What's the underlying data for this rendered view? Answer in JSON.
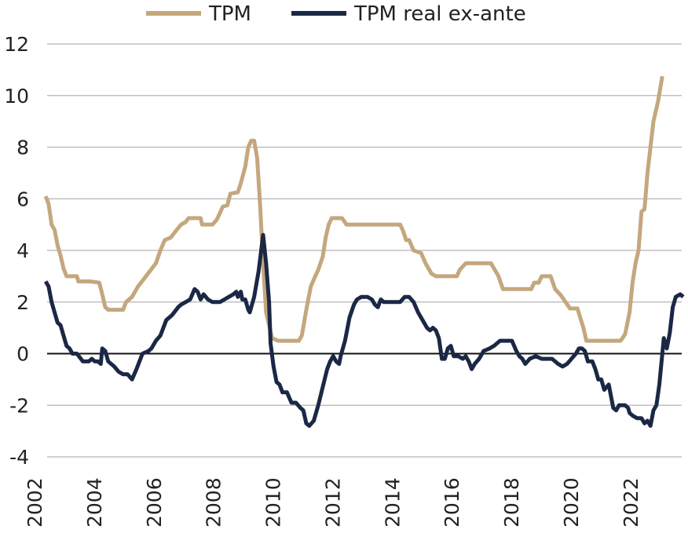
{
  "chart_data": {
    "type": "line",
    "title": "",
    "xlabel": "",
    "ylabel": "",
    "xlim": [
      2002.0,
      2022.75
    ],
    "ylim": [
      -4,
      12
    ],
    "y_ticks": [
      12,
      10,
      8,
      6,
      4,
      2,
      0,
      -2,
      -4
    ],
    "x_ticks": [
      2002,
      2004,
      2006,
      2008,
      2010,
      2012,
      2014,
      2016,
      2018,
      2020,
      2022
    ],
    "grid": "horizontal",
    "zero_line": true,
    "legend_position": "top-center",
    "series": [
      {
        "name": "TPM",
        "color": "#C4A77D",
        "points": [
          [
            2002.0,
            6.1
          ],
          [
            2002.1,
            5.8
          ],
          [
            2002.2,
            5.0
          ],
          [
            2002.3,
            4.8
          ],
          [
            2002.4,
            4.2
          ],
          [
            2002.5,
            3.8
          ],
          [
            2002.6,
            3.3
          ],
          [
            2002.7,
            3.0
          ],
          [
            2002.9,
            3.0
          ],
          [
            2003.05,
            3.0
          ],
          [
            2003.1,
            2.8
          ],
          [
            2003.5,
            2.8
          ],
          [
            2003.8,
            2.75
          ],
          [
            2003.9,
            2.3
          ],
          [
            2004.0,
            1.8
          ],
          [
            2004.1,
            1.7
          ],
          [
            2004.6,
            1.7
          ],
          [
            2004.7,
            2.0
          ],
          [
            2004.9,
            2.2
          ],
          [
            2005.1,
            2.6
          ],
          [
            2005.3,
            2.9
          ],
          [
            2005.5,
            3.2
          ],
          [
            2005.7,
            3.5
          ],
          [
            2005.85,
            4.0
          ],
          [
            2006.0,
            4.4
          ],
          [
            2006.2,
            4.5
          ],
          [
            2006.4,
            4.8
          ],
          [
            2006.55,
            5.0
          ],
          [
            2006.7,
            5.1
          ],
          [
            2006.8,
            5.25
          ],
          [
            2007.2,
            5.25
          ],
          [
            2007.25,
            5.0
          ],
          [
            2007.6,
            5.0
          ],
          [
            2007.75,
            5.2
          ],
          [
            2007.95,
            5.7
          ],
          [
            2008.1,
            5.75
          ],
          [
            2008.2,
            6.2
          ],
          [
            2008.45,
            6.25
          ],
          [
            2008.55,
            6.6
          ],
          [
            2008.7,
            7.25
          ],
          [
            2008.8,
            8.0
          ],
          [
            2008.9,
            8.25
          ],
          [
            2009.0,
            8.25
          ],
          [
            2009.1,
            7.6
          ],
          [
            2009.2,
            5.75
          ],
          [
            2009.3,
            3.5
          ],
          [
            2009.4,
            1.6
          ],
          [
            2009.5,
            1.1
          ],
          [
            2009.6,
            0.6
          ],
          [
            2009.8,
            0.5
          ],
          [
            2010.5,
            0.5
          ],
          [
            2010.6,
            0.7
          ],
          [
            2010.75,
            1.7
          ],
          [
            2010.9,
            2.6
          ],
          [
            2011.05,
            3.0
          ],
          [
            2011.15,
            3.25
          ],
          [
            2011.3,
            3.75
          ],
          [
            2011.4,
            4.5
          ],
          [
            2011.5,
            5.0
          ],
          [
            2011.6,
            5.25
          ],
          [
            2011.95,
            5.25
          ],
          [
            2012.1,
            5.0
          ],
          [
            2013.9,
            5.0
          ],
          [
            2014.0,
            4.75
          ],
          [
            2014.1,
            4.4
          ],
          [
            2014.2,
            4.4
          ],
          [
            2014.35,
            4.0
          ],
          [
            2014.6,
            3.9
          ],
          [
            2014.75,
            3.5
          ],
          [
            2014.95,
            3.1
          ],
          [
            2015.1,
            3.0
          ],
          [
            2015.8,
            3.0
          ],
          [
            2015.9,
            3.25
          ],
          [
            2016.1,
            3.5
          ],
          [
            2016.95,
            3.5
          ],
          [
            2017.1,
            3.2
          ],
          [
            2017.2,
            3.0
          ],
          [
            2017.35,
            2.5
          ],
          [
            2017.5,
            2.5
          ],
          [
            2018.3,
            2.5
          ],
          [
            2018.4,
            2.75
          ],
          [
            2018.55,
            2.75
          ],
          [
            2018.65,
            3.0
          ],
          [
            2018.95,
            3.0
          ],
          [
            2019.1,
            2.5
          ],
          [
            2019.3,
            2.25
          ],
          [
            2019.45,
            2.0
          ],
          [
            2019.6,
            1.75
          ],
          [
            2019.85,
            1.75
          ],
          [
            2020.05,
            1.0
          ],
          [
            2020.15,
            0.5
          ],
          [
            2021.3,
            0.5
          ],
          [
            2021.45,
            0.75
          ],
          [
            2021.6,
            1.6
          ],
          [
            2021.7,
            2.75
          ],
          [
            2021.8,
            3.5
          ],
          [
            2021.9,
            4.0
          ],
          [
            2022.0,
            5.5
          ],
          [
            2022.1,
            5.6
          ],
          [
            2022.2,
            7.0
          ],
          [
            2022.3,
            8.0
          ],
          [
            2022.4,
            9.0
          ],
          [
            2022.55,
            9.75
          ],
          [
            2022.7,
            10.75
          ]
        ]
      },
      {
        "name": "TPM real ex-ante",
        "color": "#1B2845",
        "points": [
          [
            2002.0,
            2.8
          ],
          [
            2002.1,
            2.6
          ],
          [
            2002.2,
            2.0
          ],
          [
            2002.3,
            1.6
          ],
          [
            2002.4,
            1.2
          ],
          [
            2002.5,
            1.1
          ],
          [
            2002.6,
            0.7
          ],
          [
            2002.7,
            0.3
          ],
          [
            2002.8,
            0.2
          ],
          [
            2002.9,
            0.0
          ],
          [
            2003.05,
            0.0
          ],
          [
            2003.25,
            -0.3
          ],
          [
            2003.45,
            -0.3
          ],
          [
            2003.55,
            -0.2
          ],
          [
            2003.65,
            -0.3
          ],
          [
            2003.75,
            -0.3
          ],
          [
            2003.85,
            -0.4
          ],
          [
            2003.9,
            0.2
          ],
          [
            2004.0,
            0.1
          ],
          [
            2004.1,
            -0.3
          ],
          [
            2004.3,
            -0.5
          ],
          [
            2004.45,
            -0.7
          ],
          [
            2004.6,
            -0.8
          ],
          [
            2004.75,
            -0.8
          ],
          [
            2004.9,
            -1.0
          ],
          [
            2005.05,
            -0.6
          ],
          [
            2005.25,
            0.0
          ],
          [
            2005.45,
            0.1
          ],
          [
            2005.55,
            0.2
          ],
          [
            2005.7,
            0.5
          ],
          [
            2005.85,
            0.7
          ],
          [
            2006.05,
            1.3
          ],
          [
            2006.25,
            1.5
          ],
          [
            2006.45,
            1.8
          ],
          [
            2006.55,
            1.9
          ],
          [
            2006.7,
            2.0
          ],
          [
            2006.85,
            2.1
          ],
          [
            2007.0,
            2.5
          ],
          [
            2007.1,
            2.4
          ],
          [
            2007.2,
            2.1
          ],
          [
            2007.3,
            2.3
          ],
          [
            2007.45,
            2.1
          ],
          [
            2007.6,
            2.0
          ],
          [
            2007.85,
            2.0
          ],
          [
            2008.0,
            2.1
          ],
          [
            2008.15,
            2.2
          ],
          [
            2008.3,
            2.3
          ],
          [
            2008.4,
            2.4
          ],
          [
            2008.45,
            2.2
          ],
          [
            2008.55,
            2.4
          ],
          [
            2008.6,
            2.1
          ],
          [
            2008.7,
            2.1
          ],
          [
            2008.8,
            1.7
          ],
          [
            2008.85,
            1.6
          ],
          [
            2009.0,
            2.2
          ],
          [
            2009.15,
            3.2
          ],
          [
            2009.3,
            4.6
          ],
          [
            2009.4,
            3.5
          ],
          [
            2009.5,
            2.0
          ],
          [
            2009.55,
            0.4
          ],
          [
            2009.65,
            -0.5
          ],
          [
            2009.75,
            -1.1
          ],
          [
            2009.85,
            -1.2
          ],
          [
            2009.95,
            -1.5
          ],
          [
            2010.1,
            -1.5
          ],
          [
            2010.25,
            -1.9
          ],
          [
            2010.4,
            -1.9
          ],
          [
            2010.55,
            -2.1
          ],
          [
            2010.65,
            -2.2
          ],
          [
            2010.75,
            -2.7
          ],
          [
            2010.85,
            -2.8
          ],
          [
            2011.0,
            -2.6
          ],
          [
            2011.15,
            -2.0
          ],
          [
            2011.3,
            -1.3
          ],
          [
            2011.45,
            -0.6
          ],
          [
            2011.55,
            -0.3
          ],
          [
            2011.65,
            -0.1
          ],
          [
            2011.75,
            -0.3
          ],
          [
            2011.85,
            -0.4
          ],
          [
            2011.9,
            -0.1
          ],
          [
            2012.05,
            0.5
          ],
          [
            2012.2,
            1.4
          ],
          [
            2012.35,
            1.9
          ],
          [
            2012.45,
            2.1
          ],
          [
            2012.6,
            2.2
          ],
          [
            2012.8,
            2.2
          ],
          [
            2012.95,
            2.1
          ],
          [
            2013.05,
            1.9
          ],
          [
            2013.15,
            1.8
          ],
          [
            2013.25,
            2.1
          ],
          [
            2013.35,
            2.0
          ],
          [
            2013.5,
            2.0
          ],
          [
            2013.9,
            2.0
          ],
          [
            2014.05,
            2.2
          ],
          [
            2014.2,
            2.2
          ],
          [
            2014.35,
            2.0
          ],
          [
            2014.5,
            1.6
          ],
          [
            2014.65,
            1.3
          ],
          [
            2014.8,
            1.0
          ],
          [
            2014.9,
            0.9
          ],
          [
            2015.0,
            1.0
          ],
          [
            2015.1,
            0.9
          ],
          [
            2015.2,
            0.6
          ],
          [
            2015.3,
            -0.2
          ],
          [
            2015.4,
            -0.2
          ],
          [
            2015.5,
            0.2
          ],
          [
            2015.6,
            0.3
          ],
          [
            2015.7,
            -0.1
          ],
          [
            2015.85,
            -0.1
          ],
          [
            2016.0,
            -0.2
          ],
          [
            2016.1,
            -0.1
          ],
          [
            2016.2,
            -0.3
          ],
          [
            2016.3,
            -0.6
          ],
          [
            2016.4,
            -0.4
          ],
          [
            2016.55,
            -0.2
          ],
          [
            2016.7,
            0.1
          ],
          [
            2016.9,
            0.2
          ],
          [
            2017.05,
            0.3
          ],
          [
            2017.25,
            0.5
          ],
          [
            2017.65,
            0.5
          ],
          [
            2017.8,
            0.1
          ],
          [
            2017.9,
            -0.1
          ],
          [
            2018.0,
            -0.2
          ],
          [
            2018.1,
            -0.4
          ],
          [
            2018.25,
            -0.2
          ],
          [
            2018.45,
            -0.1
          ],
          [
            2018.65,
            -0.2
          ],
          [
            2019.0,
            -0.2
          ],
          [
            2019.2,
            -0.4
          ],
          [
            2019.35,
            -0.5
          ],
          [
            2019.5,
            -0.4
          ],
          [
            2019.65,
            -0.2
          ],
          [
            2019.8,
            0.0
          ],
          [
            2019.9,
            0.2
          ],
          [
            2020.0,
            0.2
          ],
          [
            2020.1,
            0.1
          ],
          [
            2020.2,
            -0.3
          ],
          [
            2020.35,
            -0.3
          ],
          [
            2020.45,
            -0.6
          ],
          [
            2020.55,
            -1.0
          ],
          [
            2020.65,
            -1.0
          ],
          [
            2020.75,
            -1.4
          ],
          [
            2020.9,
            -1.2
          ],
          [
            2020.95,
            -1.5
          ],
          [
            2021.05,
            -2.1
          ],
          [
            2021.15,
            -2.2
          ],
          [
            2021.25,
            -2.0
          ],
          [
            2021.45,
            -2.0
          ],
          [
            2021.55,
            -2.1
          ],
          [
            2021.6,
            -2.3
          ],
          [
            2021.7,
            -2.4
          ],
          [
            2021.85,
            -2.5
          ],
          [
            2022.0,
            -2.5
          ],
          [
            2022.1,
            -2.7
          ],
          [
            2022.2,
            -2.6
          ],
          [
            2022.3,
            -2.8
          ],
          [
            2022.4,
            -2.2
          ],
          [
            2022.5,
            -2.0
          ],
          [
            2022.6,
            -1.2
          ],
          [
            2022.7,
            0.0
          ],
          [
            2022.75,
            0.6
          ],
          [
            2022.85,
            0.2
          ],
          [
            2022.95,
            0.8
          ],
          [
            2023.05,
            1.8
          ],
          [
            2023.15,
            2.2
          ],
          [
            2023.3,
            2.3
          ],
          [
            2023.4,
            2.2
          ]
        ]
      }
    ]
  }
}
